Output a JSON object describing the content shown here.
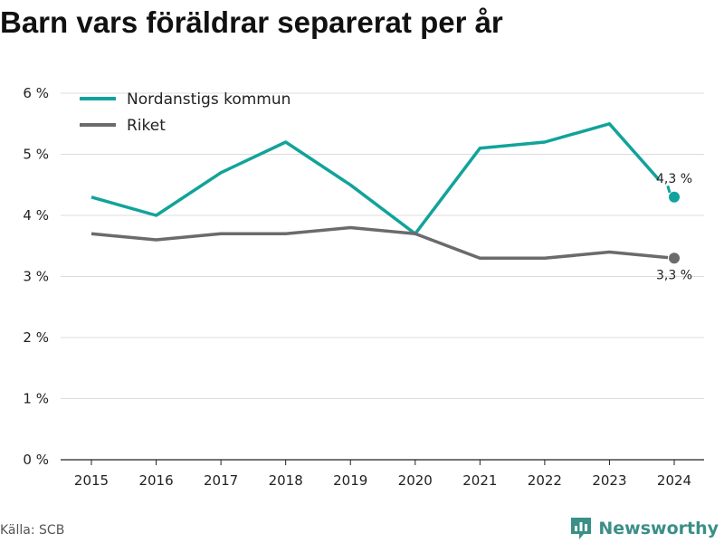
{
  "title": "Barn vars föräldrar separerat per år",
  "source": "Källa: SCB",
  "brand": {
    "name": "Newsworthy",
    "icon": "newsworthy-logo-icon",
    "color": "#3a8f87"
  },
  "chart_data": {
    "type": "line",
    "title": "Barn vars föräldrar separerat per år",
    "xlabel": "",
    "ylabel": "",
    "x": [
      "2015",
      "2016",
      "2017",
      "2018",
      "2019",
      "2020",
      "2021",
      "2022",
      "2023",
      "2024"
    ],
    "ylim": [
      0,
      6
    ],
    "y_ticks": [
      {
        "value": 0,
        "label": "0 %"
      },
      {
        "value": 1,
        "label": "1 %"
      },
      {
        "value": 2,
        "label": "2 %"
      },
      {
        "value": 3,
        "label": "3 %"
      },
      {
        "value": 4,
        "label": "4 %"
      },
      {
        "value": 5,
        "label": "5 %"
      },
      {
        "value": 6,
        "label": "6 %"
      }
    ],
    "grid": "horizontal",
    "legend_position": "top-left",
    "series": [
      {
        "name": "Nordanstigs kommun",
        "color": "#11a39b",
        "values": [
          4.3,
          4.0,
          4.7,
          5.2,
          4.5,
          3.7,
          5.1,
          5.2,
          5.5,
          4.3
        ],
        "end_label": "4,3 %"
      },
      {
        "name": "Riket",
        "color": "#6b6b6d",
        "values": [
          3.7,
          3.6,
          3.7,
          3.7,
          3.8,
          3.7,
          3.3,
          3.3,
          3.4,
          3.3
        ],
        "end_label": "3,3 %"
      }
    ]
  }
}
